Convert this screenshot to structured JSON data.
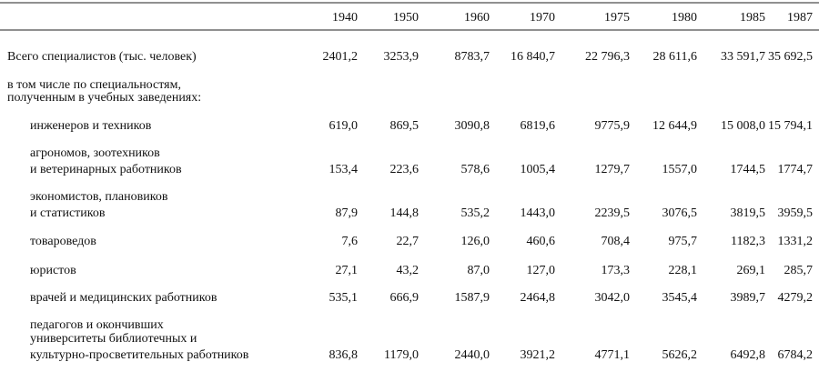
{
  "table": {
    "columns": [
      "1940",
      "1950",
      "1960",
      "1970",
      "1975",
      "1980",
      "1985",
      "1987"
    ],
    "rows": [
      {
        "label": [
          "Всего специалистов (тыс. человек)"
        ],
        "values": [
          "2401,2",
          "3253,9",
          "8783,7",
          "16 840,7",
          "22 796,3",
          "28 611,6",
          "33 591,7",
          "35 692,5"
        ]
      },
      {
        "label": [
          "в том числе по специальностям,",
          "полученным в учебных заведениях:"
        ]
      },
      {
        "label": [
          "инженеров и техников"
        ],
        "values": [
          "619,0",
          "869,5",
          "3090,8",
          "6819,6",
          "9775,9",
          "12 644,9",
          "15 008,0",
          "15 794,1"
        ]
      },
      {
        "label": [
          "агрономов, зоотехников",
          "и ветеринарных работников"
        ],
        "values": [
          "153,4",
          "223,6",
          "578,6",
          "1005,4",
          "1279,7",
          "1557,0",
          "1744,5",
          "1774,7"
        ]
      },
      {
        "label": [
          "экономистов, плановиков",
          "и статистиков"
        ],
        "values": [
          "87,9",
          "144,8",
          "535,2",
          "1443,0",
          "2239,5",
          "3076,5",
          "3819,5",
          "3959,5"
        ]
      },
      {
        "label": [
          "товароведов"
        ],
        "values": [
          "7,6",
          "22,7",
          "126,0",
          "460,6",
          "708,4",
          "975,7",
          "1182,3",
          "1331,2"
        ]
      },
      {
        "label": [
          "юристов"
        ],
        "values": [
          "27,1",
          "43,2",
          "87,0",
          "127,0",
          "173,3",
          "228,1",
          "269,1",
          "285,7"
        ]
      },
      {
        "label": [
          "врачей и медицинских работников"
        ],
        "values": [
          "535,1",
          "666,9",
          "1587,9",
          "2464,8",
          "3042,0",
          "3545,4",
          "3989,7",
          "4279,2"
        ]
      },
      {
        "label": [
          "педагогов и окончивших",
          "университеты библиотечных и",
          "культурно-просветительных работников"
        ],
        "values": [
          "836,8",
          "1179,0",
          "2440,0",
          "3921,2",
          "4771,1",
          "5626,2",
          "6492,8",
          "6784,2"
        ]
      }
    ]
  }
}
